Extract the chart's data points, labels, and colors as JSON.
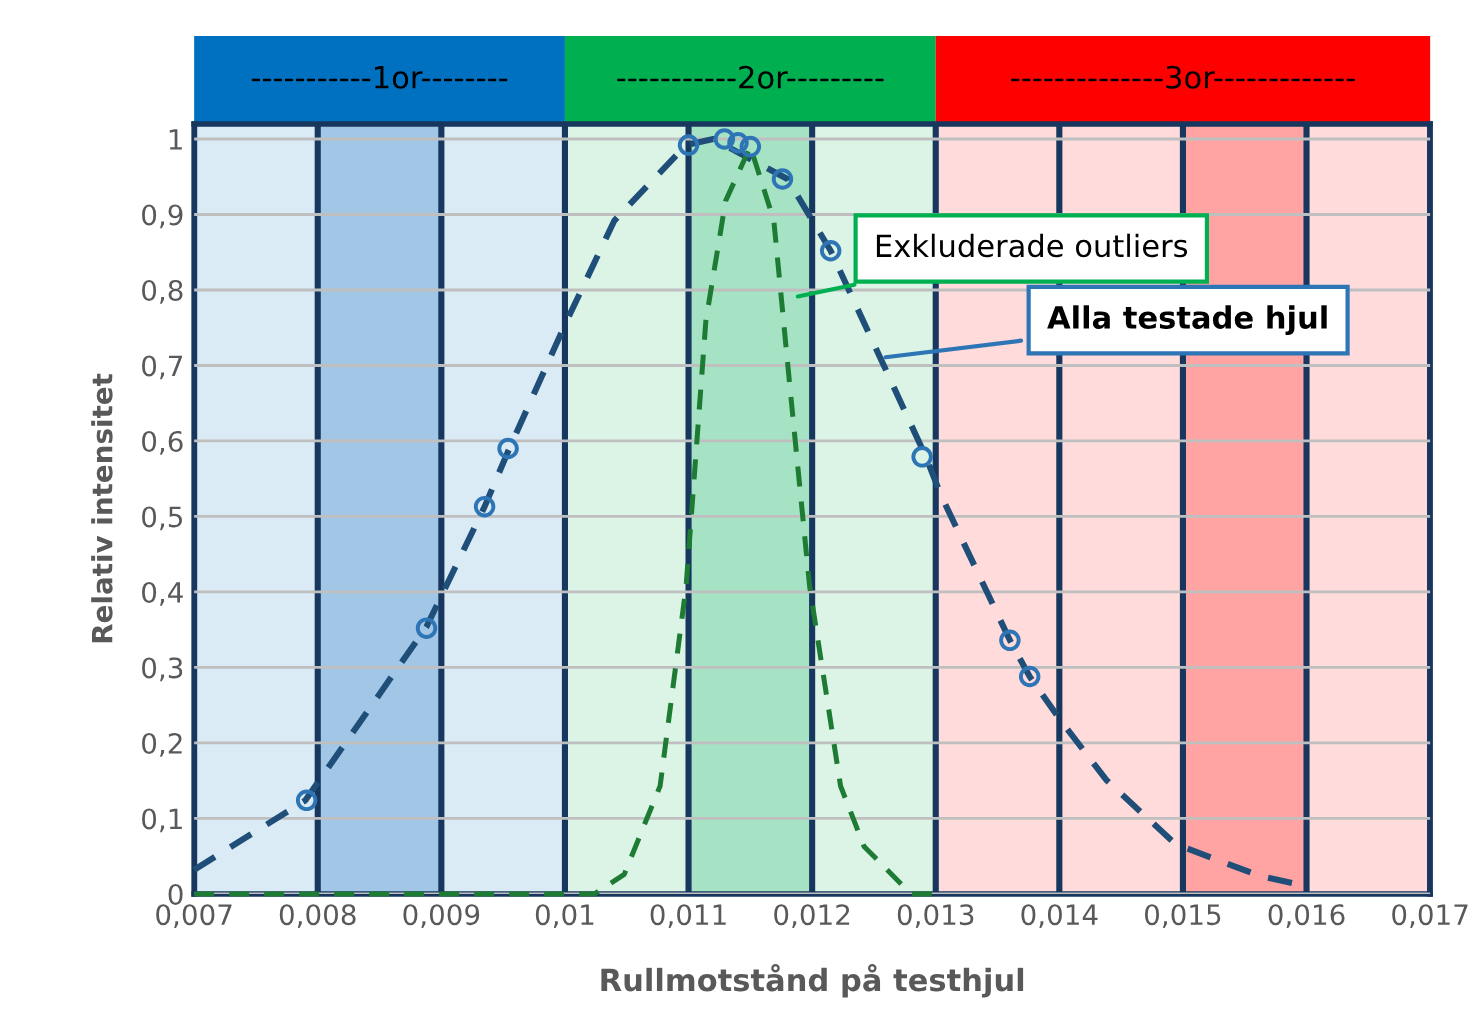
{
  "chart_data": {
    "type": "line",
    "xlabel": "Rullmotstånd på testhjul",
    "ylabel": "Relativ intensitet",
    "xlim": [
      0.007,
      0.017
    ],
    "ylim": [
      0,
      1.02
    ],
    "xticks": [
      {
        "value": 0.007,
        "label": "0,007"
      },
      {
        "value": 0.008,
        "label": "0,008"
      },
      {
        "value": 0.009,
        "label": "0,009"
      },
      {
        "value": 0.01,
        "label": "0,01"
      },
      {
        "value": 0.011,
        "label": "0,011"
      },
      {
        "value": 0.012,
        "label": "0,012"
      },
      {
        "value": 0.013,
        "label": "0,013"
      },
      {
        "value": 0.014,
        "label": "0,014"
      },
      {
        "value": 0.015,
        "label": "0,015"
      },
      {
        "value": 0.016,
        "label": "0,016"
      },
      {
        "value": 0.017,
        "label": "0,017"
      }
    ],
    "yticks": [
      0,
      {
        "value": 0.1,
        "label": "0,1"
      },
      {
        "value": 0.2,
        "label": "0,2"
      },
      {
        "value": 0.3,
        "label": "0,3"
      },
      {
        "value": 0.4,
        "label": "0,4"
      },
      {
        "value": 0.5,
        "label": "0,5"
      },
      {
        "value": 0.6,
        "label": "0,6"
      },
      {
        "value": 0.7,
        "label": "0,7"
      },
      {
        "value": 0.8,
        "label": "0,8"
      },
      {
        "value": 0.9,
        "label": "0,9"
      },
      1
    ],
    "grid": true,
    "bands": [
      {
        "axis": "x",
        "from": 0.007,
        "to": 0.01,
        "label": "-----------1or--------",
        "color": "#0070c0"
      },
      {
        "axis": "x",
        "from": 0.01,
        "to": 0.013,
        "label": "-----------2or---------",
        "color": "#00b050"
      },
      {
        "axis": "x",
        "from": 0.013,
        "to": 0.017,
        "label": "--------------3or-------------",
        "color": "#ff0000"
      },
      {
        "axis": "x",
        "from": 0.008,
        "to": 0.009,
        "color": "#a2c7e6"
      },
      {
        "axis": "x",
        "from": 0.011,
        "to": 0.012,
        "color": "#a6e2c4"
      },
      {
        "axis": "x",
        "from": 0.015,
        "to": 0.016,
        "color": "#ffa3a3"
      }
    ],
    "series": [
      {
        "color": "#1f4e79",
        "line_style": "dashed",
        "marker": "none",
        "x": [
          0.007,
          0.0079,
          0.00888,
          0.00935,
          0.00955,
          0.01,
          0.0104,
          0.01098,
          0.0112,
          0.0118,
          0.01215,
          0.01258,
          0.01292,
          0.01304,
          0.0136,
          0.01376,
          0.01401,
          0.01438,
          0.01494,
          0.01562,
          0.01598
        ],
        "values": [
          0.032,
          0.124,
          0.354,
          0.513,
          0.59,
          0.754,
          0.892,
          0.992,
          1.0,
          0.947,
          0.852,
          0.7,
          0.579,
          0.529,
          0.336,
          0.288,
          0.23,
          0.151,
          0.066,
          0.024,
          0.011
        ]
      },
      {
        "color": "#1e7b34",
        "line_style": "dashed",
        "marker": "none",
        "x": [
          0.007,
          0.01,
          0.01024,
          0.01048,
          0.01077,
          0.01098,
          0.01114,
          0.0113,
          0.0115,
          0.01169,
          0.01182,
          0.01198,
          0.01223,
          0.01242,
          0.0128,
          0.013
        ],
        "values": [
          0,
          0,
          0,
          0.026,
          0.143,
          0.407,
          0.759,
          0.918,
          0.99,
          0.892,
          0.672,
          0.407,
          0.143,
          0.063,
          0,
          0
        ]
      },
      {
        "type": "scatter",
        "color": "#2e75b6",
        "marker": "circle",
        "x": [
          0.00791,
          0.00888,
          0.00935,
          0.00954,
          0.011,
          0.01129,
          0.0114,
          0.0115,
          0.01176,
          0.01215,
          0.01289,
          0.0136,
          0.01376
        ],
        "values": [
          0.124,
          0.352,
          0.513,
          0.59,
          0.992,
          1.0,
          0.995,
          0.99,
          0.947,
          0.852,
          0.579,
          0.336,
          0.288
        ]
      }
    ],
    "annotations": [
      {
        "text": "Exkluderade outliers",
        "x": 0.01184,
        "y": 0.79
      },
      {
        "text": "Alla testade hjul",
        "x": 0.01255,
        "y": 0.71
      }
    ]
  }
}
